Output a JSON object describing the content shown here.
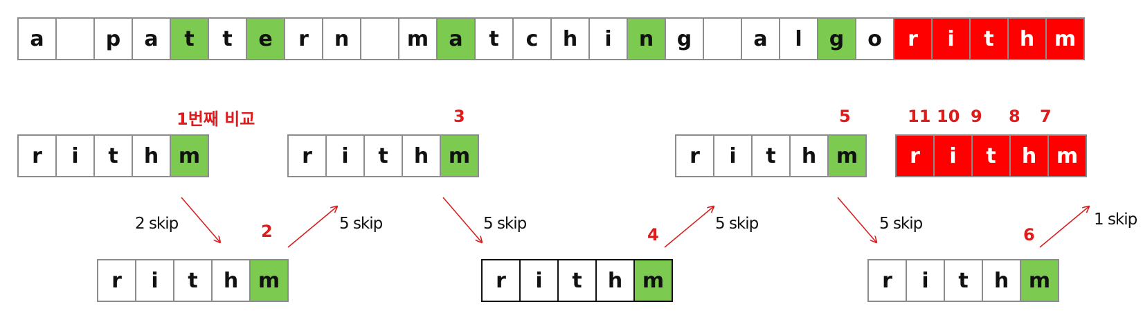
{
  "text_chars": [
    "a",
    "",
    "p",
    "a",
    "t",
    "t",
    "e",
    "r",
    "n",
    "",
    "m",
    "a",
    "t",
    "c",
    "h",
    "i",
    "n",
    "g",
    "",
    "a",
    "l",
    "g",
    "o",
    "r",
    "i",
    "t",
    "h",
    "m"
  ],
  "pattern_chars": [
    "r",
    "i",
    "t",
    "h",
    "m"
  ],
  "colors": {
    "match": "#7cca50",
    "final_match": "#ff0000",
    "label": "#e01b1b",
    "arrow": "#d42020"
  },
  "labels": {
    "first_compare": "1번째 비교",
    "n2": "2",
    "n3": "3",
    "n4": "4",
    "n5": "5",
    "n6": "6",
    "n7": "7",
    "n8": "8",
    "n9": "9",
    "n10": "10",
    "n11": "11"
  },
  "skips": {
    "s1": "2 skip",
    "s2": "5 skip",
    "s3": "5 skip",
    "s4": "5 skip",
    "s5": "5 skip",
    "s6": "1 skip"
  }
}
